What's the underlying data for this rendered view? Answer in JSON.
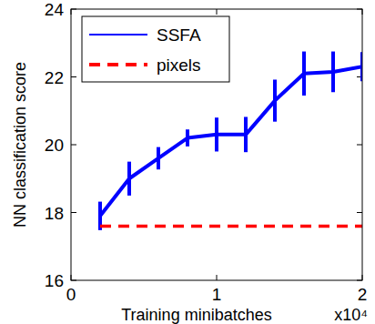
{
  "chart_data": {
    "type": "line",
    "x_label": "Training minibatches",
    "y_label": "NN classification score",
    "x_multiplier_label": "x10⁴",
    "x": [
      0.2,
      0.4,
      0.6,
      0.8,
      1.0,
      1.2,
      1.4,
      1.6,
      1.8,
      2.0
    ],
    "xlim": [
      0,
      2
    ],
    "xticks": [
      0,
      1,
      2
    ],
    "ylim": [
      16,
      24
    ],
    "yticks": [
      16,
      18,
      20,
      22,
      24
    ],
    "grid": false,
    "legend": "top-left",
    "series": [
      {
        "name": "SSFA",
        "color": "#0000ff",
        "line_style": "solid",
        "values": [
          17.9,
          19.0,
          19.6,
          20.2,
          20.3,
          20.3,
          21.3,
          22.1,
          22.15,
          22.3
        ],
        "errors": [
          0.42,
          0.5,
          0.33,
          0.25,
          0.5,
          0.52,
          0.62,
          0.65,
          0.6,
          0.43
        ]
      },
      {
        "name": "pixels",
        "color": "#ff0000",
        "line_style": "dashed",
        "values": [
          17.6,
          17.6,
          17.6,
          17.6,
          17.6,
          17.6,
          17.6,
          17.6,
          17.6,
          17.6
        ]
      }
    ]
  }
}
